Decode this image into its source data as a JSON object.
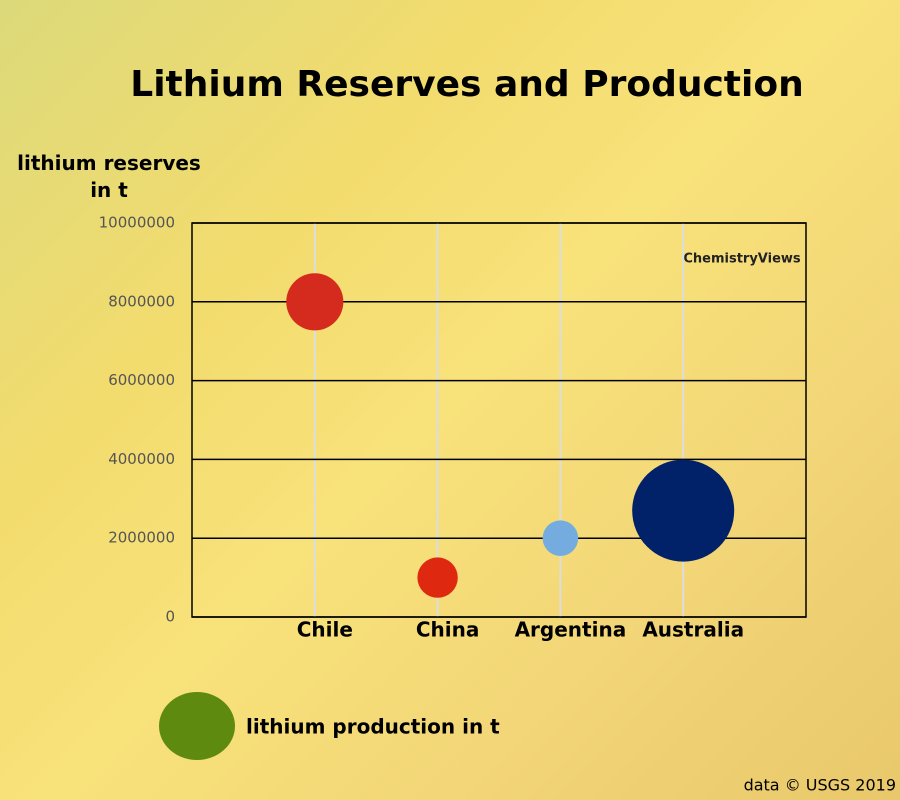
{
  "chart_data": {
    "type": "bubble",
    "title": "Lithium Reserves and Production",
    "y_label": "lithium reserves in t",
    "categories": [
      "Chile",
      "China",
      "Argentina",
      "Australia"
    ],
    "values": [
      8000000,
      1000000,
      2000000,
      2700000
    ],
    "sizes": [
      16000,
      8000,
      6200,
      51000
    ],
    "colors": [
      "#d52b1e",
      "#de2910",
      "#74acdf",
      "#012169"
    ],
    "size_legend": {
      "label": "lithium production in t",
      "color": "#5f8a10"
    },
    "ylim": [
      0,
      10000000
    ],
    "yticks": [
      0,
      2000000,
      4000000,
      6000000,
      8000000,
      10000000
    ],
    "grid": true,
    "logo": "ChemistryViews",
    "source": "data © USGS 2019"
  }
}
